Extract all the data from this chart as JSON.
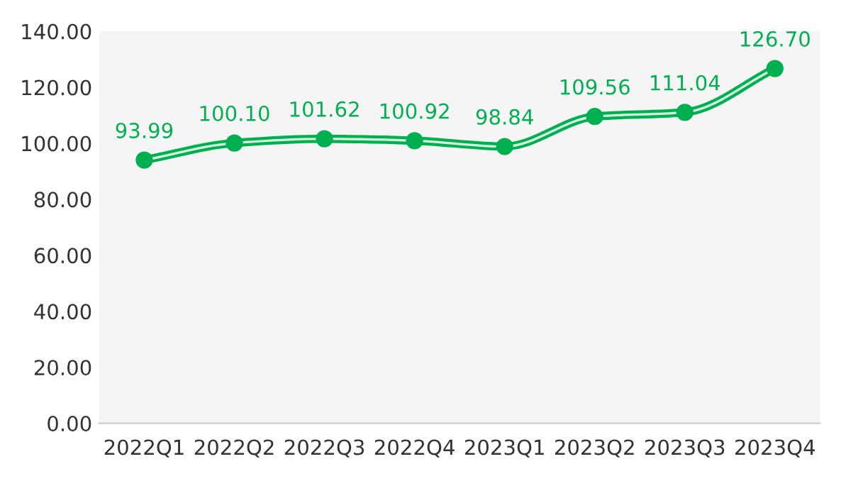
{
  "chart_data": {
    "type": "line",
    "categories": [
      "2022Q1",
      "2022Q2",
      "2022Q3",
      "2022Q4",
      "2023Q1",
      "2023Q2",
      "2023Q3",
      "2023Q4"
    ],
    "series": [
      {
        "color": "#00b050",
        "values": [
          93.99,
          100.1,
          101.62,
          100.92,
          98.84,
          109.56,
          111.04,
          126.7
        ],
        "value_labels": [
          "93.99",
          "100.10",
          "101.62",
          "100.92",
          "98.84",
          "109.56",
          "111.04",
          "126.70"
        ]
      }
    ],
    "ylim": [
      0,
      140
    ],
    "yticks": [
      {
        "value": 0,
        "label": "0.00"
      },
      {
        "value": 20,
        "label": "20.00"
      },
      {
        "value": 40,
        "label": "40.00"
      },
      {
        "value": 60,
        "label": "60.00"
      },
      {
        "value": 80,
        "label": "80.00"
      },
      {
        "value": 100,
        "label": "100.00"
      },
      {
        "value": 120,
        "label": "120.00"
      },
      {
        "value": 140,
        "label": "140.00"
      }
    ],
    "grid": false,
    "legend": false,
    "marker": "circle",
    "line_style": "solid"
  }
}
